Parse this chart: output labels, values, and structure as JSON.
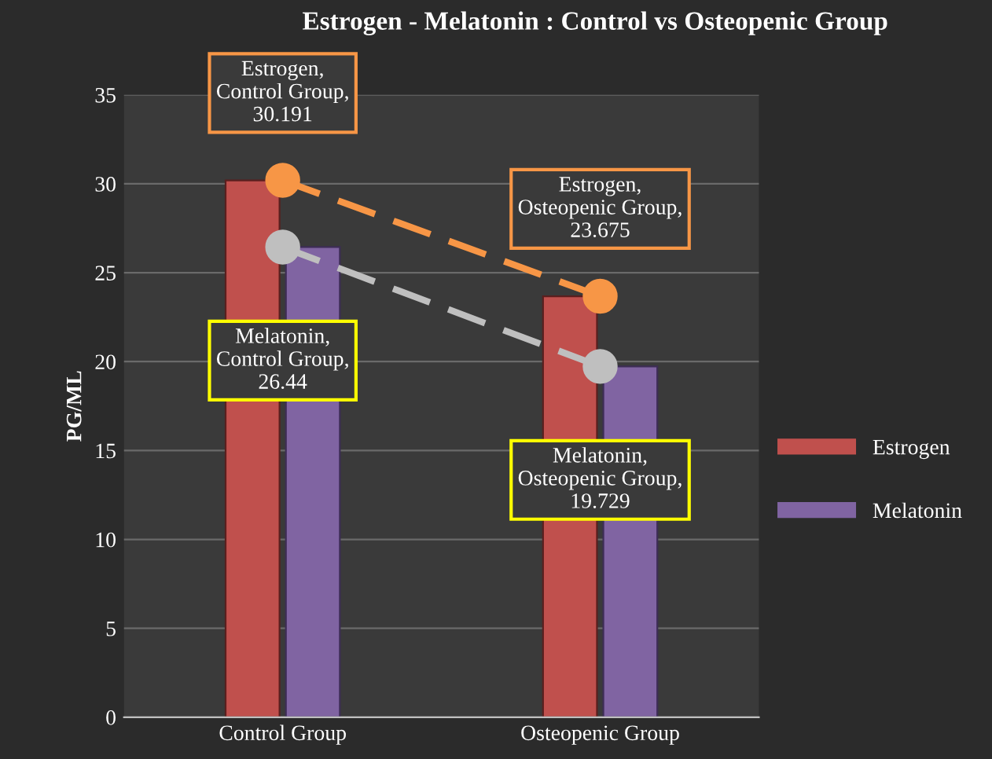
{
  "chart_data": {
    "type": "bar",
    "title": "Estrogen - Melatonin : Control vs Osteopenic Group",
    "ylabel": "PG/ML",
    "categories": [
      "Control Group",
      "Osteopenic Group"
    ],
    "series": [
      {
        "name": "Estrogen",
        "color": "#c0504d",
        "values": [
          30.191,
          23.675
        ]
      },
      {
        "name": "Melatonin",
        "color": "#8064a2",
        "values": [
          26.44,
          19.729
        ]
      },
      {
        "type": "line",
        "color": "#f79646",
        "line_style": "dashed",
        "marker": "circle",
        "values": [
          30.191,
          23.675
        ],
        "value_labels": [
          "Estrogen, Control Group, 30.191",
          "Estrogen, Osteopenic Group, 23.675"
        ]
      },
      {
        "type": "line",
        "color": "#bfbfbf",
        "line_style": "dashed",
        "marker": "circle",
        "values": [
          26.44,
          19.729
        ],
        "value_labels": [
          "Melatonin, Control Group, 26.44",
          "Melatonin, Osteopenic Group, 19.729"
        ]
      }
    ],
    "ylim": [
      0,
      35
    ],
    "yticks": [
      0,
      5,
      10,
      15,
      20,
      25,
      30,
      35
    ],
    "grid": "y",
    "legend": "right"
  }
}
